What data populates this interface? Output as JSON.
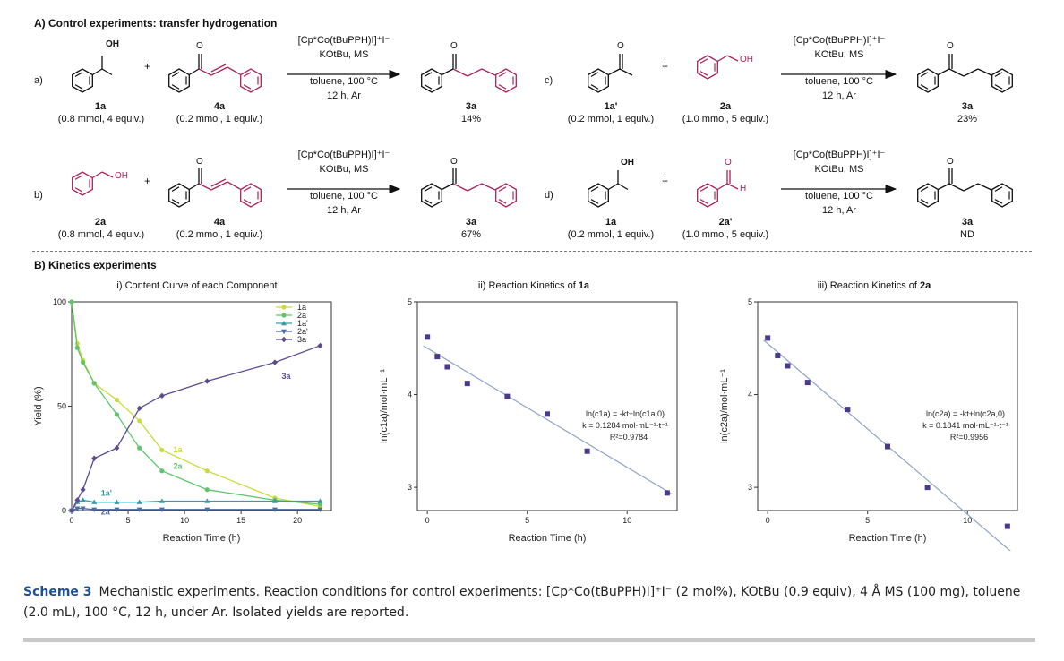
{
  "sectionA": {
    "title": "A) Control experiments: transfer hydrogenation",
    "reactions": [
      {
        "label": "a)",
        "reactant1": {
          "name": "1a",
          "amount": "(0.8 mmol, 4 equiv.)"
        },
        "reactant2": {
          "name": "4a",
          "amount": "(0.2 mmol, 1 equiv.)"
        },
        "conditions": [
          "[Cp*Co(tBuPPH)I]⁺I⁻",
          "KOtBu, MS",
          "toluene, 100 °C",
          "12 h, Ar"
        ],
        "product": {
          "name": "3a",
          "yield": "14%"
        }
      },
      {
        "label": "b)",
        "reactant1": {
          "name": "2a",
          "amount": "(0.8 mmol, 4 equiv.)"
        },
        "reactant2": {
          "name": "4a",
          "amount": "(0.2 mmol, 1 equiv.)"
        },
        "conditions": [
          "[Cp*Co(tBuPPH)I]⁺I⁻",
          "KOtBu, MS",
          "toluene, 100 °C",
          "12 h, Ar"
        ],
        "product": {
          "name": "3a",
          "yield": "67%"
        }
      },
      {
        "label": "c)",
        "reactant1": {
          "name": "1a'",
          "amount": "(0.2 mmol, 1 equiv.)"
        },
        "reactant2": {
          "name": "2a",
          "amount": "(1.0 mmol, 5 equiv.)"
        },
        "conditions": [
          "[Cp*Co(tBuPPH)I]⁺I⁻",
          "KOtBu, MS",
          "toluene, 100 °C",
          "12 h, Ar"
        ],
        "product": {
          "name": "3a",
          "yield": "23%"
        }
      },
      {
        "label": "d)",
        "reactant1": {
          "name": "1a",
          "amount": "(0.2 mmol, 1 equiv.)"
        },
        "reactant2": {
          "name": "2a'",
          "amount": "(1.0 mmol, 5 equiv.)"
        },
        "conditions": [
          "[Cp*Co(tBuPPH)I]⁺I⁻",
          "KOtBu, MS",
          "toluene, 100 °C",
          "12 h, Ar"
        ],
        "product": {
          "name": "3a",
          "yield": "ND"
        }
      }
    ],
    "plus_sign": "+",
    "labels_oh": "OH",
    "label_h": "H",
    "label_o": "O"
  },
  "sectionB": {
    "title": "B) Kinetics experiments"
  },
  "chart_data": [
    {
      "type": "line",
      "title": "i) Content Curve of each Component",
      "xlabel": "Reaction Time (h)",
      "ylabel": "Yield (%)",
      "xlim": [
        0,
        23
      ],
      "ylim": [
        0,
        100
      ],
      "xticks": [
        0,
        5,
        10,
        15,
        20
      ],
      "yticks": [
        0,
        50,
        100
      ],
      "legend_position": "top-right",
      "x": [
        0,
        0.5,
        1,
        2,
        4,
        6,
        8,
        12,
        18,
        22
      ],
      "series": [
        {
          "name": "1a",
          "color": "#c9dc3c",
          "marker": "circle",
          "values": [
            100,
            80,
            72,
            61,
            53,
            43,
            29,
            19,
            6,
            2
          ],
          "label_point": {
            "x": 9,
            "y": 28
          }
        },
        {
          "name": "2a",
          "color": "#5fc46b",
          "marker": "circle",
          "values": [
            100,
            78,
            71,
            61,
            46,
            30,
            19,
            10,
            5,
            3
          ],
          "label_point": {
            "x": 9,
            "y": 20
          }
        },
        {
          "name": "1a'",
          "color": "#3a9aa5",
          "marker": "triangle-up",
          "values": [
            0,
            4,
            5,
            4,
            4,
            4,
            4.5,
            4.5,
            4.5,
            4.5
          ],
          "label_point": {
            "x": 2.6,
            "y": 7
          }
        },
        {
          "name": "2a'",
          "color": "#4c6aa3",
          "marker": "triangle-down",
          "values": [
            0,
            1,
            1,
            0.5,
            0.5,
            0.5,
            0.5,
            0.5,
            0.5,
            0.5
          ],
          "label_point": {
            "x": 2.6,
            "y": -2
          }
        },
        {
          "name": "3a",
          "color": "#5c4a8f",
          "marker": "diamond",
          "values": [
            0,
            5,
            10,
            25,
            30,
            49,
            55,
            62,
            71,
            79
          ],
          "label_point": {
            "x": 18.6,
            "y": 63
          }
        }
      ]
    },
    {
      "type": "scatter",
      "title": "ii) Reaction Kinetics of 1a",
      "xlabel": "Reaction Time (h)",
      "ylabel": "ln(c1a)/mol·mL⁻¹",
      "xlim": [
        -0.5,
        12.5
      ],
      "ylim": [
        2.75,
        5
      ],
      "xticks": [
        0,
        5,
        10
      ],
      "yticks": [
        3,
        4,
        5
      ],
      "x": [
        0,
        0.5,
        1,
        2,
        4,
        6,
        8,
        12
      ],
      "values": [
        4.62,
        4.41,
        4.3,
        4.12,
        3.98,
        3.79,
        3.39,
        2.94
      ],
      "fit": {
        "slope": -0.1284,
        "intercept": 4.5
      },
      "annotation": {
        "equation": "ln(c1a) = -kt+ln(c1a,0)",
        "k": "k = 0.1284 mol·mL⁻¹·t⁻¹",
        "r2": "R²=0.9784"
      }
    },
    {
      "type": "scatter",
      "title": "iii) Reaction Kinetics of 2a",
      "xlabel": "Reaction Time (h)",
      "ylabel": "ln(c2a)/mol·mL⁻¹",
      "xlim": [
        -0.5,
        12.5
      ],
      "ylim": [
        2.75,
        5
      ],
      "xticks": [
        0,
        5,
        10
      ],
      "yticks": [
        3,
        4,
        5
      ],
      "x": [
        0,
        0.5,
        1,
        2,
        4,
        6,
        8,
        12
      ],
      "values": [
        4.61,
        4.42,
        4.31,
        4.13,
        3.84,
        3.44,
        3.0,
        2.58
      ],
      "fit": {
        "slope": -0.1841,
        "intercept": 4.55
      },
      "annotation": {
        "equation": "ln(c2a) = -kt+ln(c2a,0)",
        "k": "k = 0.1841 mol·mL⁻¹·t⁻¹",
        "r2": "R²=0.9956"
      }
    }
  ],
  "caption": {
    "label": "Scheme 3",
    "text": "Mechanistic experiments. Reaction conditions for control experiments: [Cp*Co(tBuPPH)I]⁺I⁻ (2 mol%), KOtBu (0.9 equiv), 4 Å MS (100 mg), toluene (2.0 mL), 100 °C, 12 h, under Ar. Isolated yields are reported."
  },
  "colors": {
    "highlight": "#a8235a",
    "fit_line": "#8ca3c7",
    "marker": "#4b3a8a",
    "caption_label": "#1d4f96"
  }
}
